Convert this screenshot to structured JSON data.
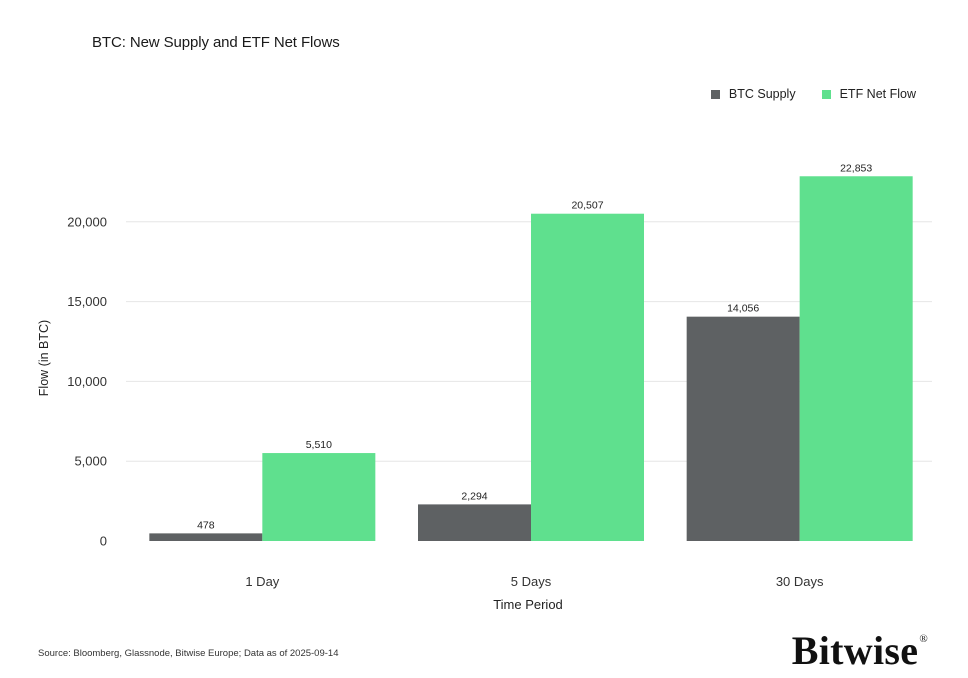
{
  "chart_data": {
    "type": "bar",
    "title": "BTC: New Supply and ETF Net Flows",
    "xlabel": "Time Period",
    "ylabel": "Flow (in BTC)",
    "categories": [
      "1 Day",
      "5 Days",
      "30 Days"
    ],
    "series": [
      {
        "name": "BTC Supply",
        "values": [
          478,
          2294,
          14056
        ],
        "labels": [
          "478",
          "2,294",
          "14,056"
        ],
        "color": "#5e6163"
      },
      {
        "name": "ETF Net Flow",
        "values": [
          5510,
          20507,
          22853
        ],
        "labels": [
          "5,510",
          "20,507",
          "22,853"
        ],
        "color": "#5fe08e"
      }
    ],
    "ylim": [
      0,
      25000
    ],
    "yticks": [
      0,
      5000,
      10000,
      15000,
      20000
    ],
    "ytick_labels": [
      "0",
      "5,000",
      "10,000",
      "15,000",
      "20,000"
    ],
    "grid": true,
    "legend_position": "top-right"
  },
  "footer": {
    "source": "Source: Bloomberg, Glassnode, Bitwise Europe; Data as of 2025-09-14",
    "logo_text": "Bitwise",
    "logo_mark": "®"
  }
}
